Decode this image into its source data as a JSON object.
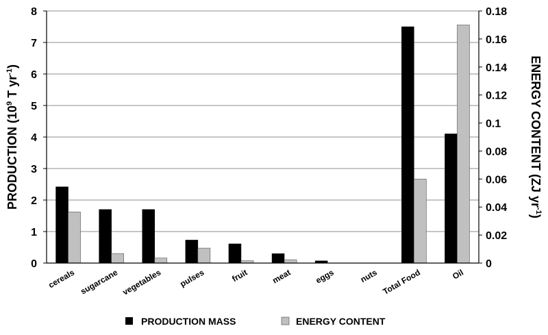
{
  "chart_data": {
    "type": "bar",
    "categories": [
      "cereals",
      "sugarcane",
      "vegetables",
      "pulses",
      "fruit",
      "meat",
      "eggs",
      "nuts",
      "Total Food",
      "Oil"
    ],
    "series": [
      {
        "name": "PRODUCTION MASS",
        "axis": "left",
        "color": "#000000",
        "values": [
          2.42,
          1.7,
          1.7,
          0.73,
          0.61,
          0.3,
          0.07,
          0.0,
          7.5,
          4.1
        ]
      },
      {
        "name": "ENERGY CONTENT",
        "axis": "right",
        "color": "#c0c0c0",
        "values": [
          0.0365,
          0.0068,
          0.0036,
          0.0107,
          0.0017,
          0.0024,
          0.0,
          0.0,
          0.06,
          0.17
        ]
      }
    ],
    "y_left": {
      "ylim": [
        0,
        8
      ],
      "ticks": [
        "0",
        "1",
        "2",
        "3",
        "4",
        "5",
        "6",
        "7",
        "8"
      ],
      "label_main": "PRODUCTION (10",
      "label_sup1": "9",
      "label_mid": " T yr",
      "label_sup2": "-1",
      "label_end": ")"
    },
    "y_right": {
      "ylim": [
        0,
        0.18
      ],
      "ticks": [
        "0",
        "0.02",
        "0.04",
        "0.06",
        "0.08",
        "0.1",
        "0.12",
        "0.14",
        "0.16",
        "0.18"
      ],
      "label_main": "ENERGY CONTENT (ZJ  yr",
      "label_sup": "-1",
      "label_end": ")"
    },
    "grid": true,
    "legend_position": "bottom"
  }
}
